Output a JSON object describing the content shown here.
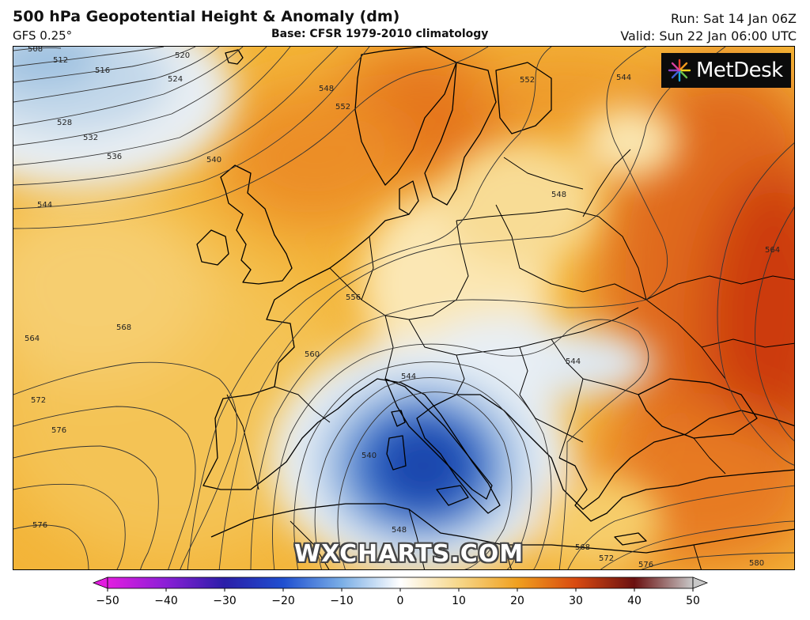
{
  "header": {
    "title": "500 hPa Geopotential Height & Anomaly (dm)",
    "model": "GFS 0.25°",
    "base": "Base: CFSR 1979-2010 climatology",
    "run": "Run: Sat 14 Jan 06Z",
    "valid": "Valid: Sun 22 Jan 06:00 UTC"
  },
  "logo": {
    "text": "MetDesk",
    "icon": "starburst-logo-icon"
  },
  "watermark": "WXCHARTS.COM",
  "colorbar": {
    "ticks": [
      "−50",
      "−40",
      "−30",
      "−20",
      "−10",
      "0",
      "10",
      "20",
      "30",
      "40",
      "50"
    ],
    "colors": {
      "-50": "#e21de0",
      "-40": "#8a1fd6",
      "-30": "#2a1ea8",
      "-20": "#1f4fd0",
      "-10": "#7aaee6",
      "0": "#ffffff",
      "10": "#f6d78a",
      "20": "#f0a020",
      "30": "#d84a10",
      "40": "#6a1010",
      "50": "#c8c8c8"
    }
  },
  "contours": {
    "c508": "508",
    "c512": "512",
    "c516": "516",
    "c520": "520",
    "c524": "524",
    "c528": "528",
    "c532": "532",
    "c536": "536",
    "c540": "540",
    "c544a": "544",
    "c548a": "548",
    "c552a": "552",
    "c552b": "552",
    "c544b": "544",
    "c548b": "548",
    "c556": "556",
    "c560": "560",
    "c564a": "564",
    "c568": "568",
    "c572a": "572",
    "c576a": "576",
    "c576b": "576",
    "c544c": "544",
    "c544d": "544",
    "c540b": "540",
    "c548c": "548",
    "c564b": "564",
    "c568b": "568",
    "c572b": "572",
    "c576c": "576",
    "c580": "580"
  }
}
